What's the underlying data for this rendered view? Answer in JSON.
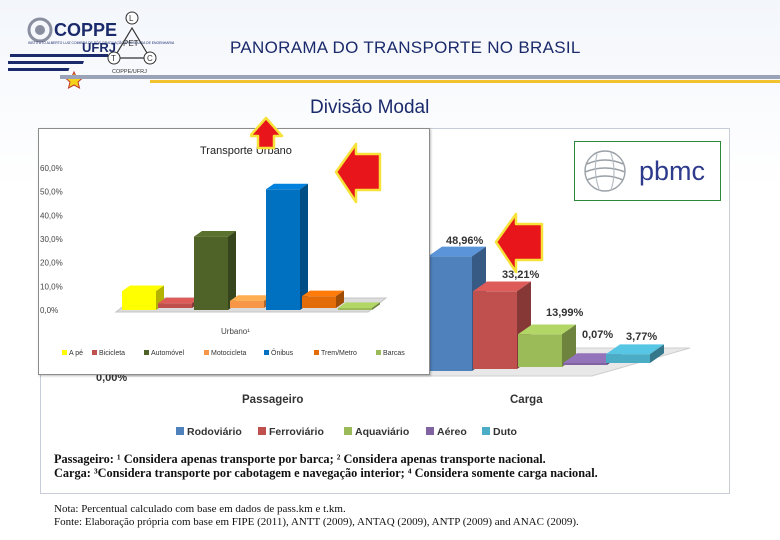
{
  "header": {
    "title": "PANORAMA DO TRANSPORTE NO BRASIL",
    "coppe_logo_text": "COPPE",
    "ufrj_text": "UFRJ",
    "coppe_small_text": "INSTITUTO ALBERTO LUIZ COIMBRA DE PÓS-GRADUAÇÃO E PESQUISA DE ENGENHARIA",
    "pet_logo_letters": {
      "top": "L",
      "center": "PET",
      "left": "T",
      "right": "C"
    },
    "pet_caption": "COPPE/UFRJ"
  },
  "subtitle": "Divisão Modal",
  "pbmc_logo_text": "pbmc",
  "colors": {
    "title": "#1b2a6b",
    "accent_rule": "#f2c230",
    "arrow_red": "#e8161b",
    "arrow_outline": "#f7e23a"
  },
  "chart_data": [
    {
      "type": "bar",
      "categories": [
        "Passageiro",
        "Carga"
      ],
      "series": [
        {
          "name": "Rodoviário",
          "color": "#4f81bd",
          "values": [
            null,
            48.96
          ]
        },
        {
          "name": "Ferroviário",
          "color": "#c0504d",
          "values": [
            null,
            33.21
          ]
        },
        {
          "name": "Aquaviário",
          "color": "#9bbb59",
          "values": [
            null,
            13.99
          ]
        },
        {
          "name": "Aéreo",
          "color": "#8064a2",
          "values": [
            null,
            0.07
          ]
        },
        {
          "name": "Duto",
          "color": "#4bacc6",
          "values": [
            null,
            3.77
          ]
        }
      ],
      "data_labels": [
        "48,96%",
        "33,21%",
        "13,99%",
        "0,07%",
        "3,77%"
      ],
      "visible_tick_labels": [
        "0,00%"
      ],
      "ylim": [
        0,
        60
      ],
      "legend_position": "bottom"
    },
    {
      "type": "bar",
      "title": "Transporte Urbano",
      "categories": [
        "Urbano¹"
      ],
      "series": [
        {
          "name": "A pé",
          "color": "#ffff00",
          "values": [
            8
          ]
        },
        {
          "name": "Bicicleta",
          "color": "#c0504d",
          "values": [
            2
          ]
        },
        {
          "name": "Automóvel",
          "color": "#4f6228",
          "values": [
            31
          ]
        },
        {
          "name": "Motocicleta",
          "color": "#f79646",
          "values": [
            3
          ]
        },
        {
          "name": "Ônibus",
          "color": "#0070c0",
          "values": [
            51
          ]
        },
        {
          "name": "Trem/Metro",
          "color": "#e36c09",
          "values": [
            5
          ]
        },
        {
          "name": "Barcas",
          "color": "#9bbb59",
          "values": [
            0.5
          ]
        }
      ],
      "y_ticks": [
        "60,0%",
        "50,0%",
        "40,0%",
        "30,0%",
        "20,0%",
        "10,0%",
        "0,0%"
      ],
      "ylim": [
        0,
        60
      ],
      "legend_position": "bottom"
    }
  ],
  "footnotes": {
    "line1": "Passageiro: ¹ Considera apenas transporte por barca; ² Considera apenas transporte nacional.",
    "line2": "Carga: ³Considera transporte por cabotagem e navegação interior; ⁴ Considera somente carga nacional."
  },
  "nota": {
    "line1": "Nota: Percentual calculado com base em dados de pass.km e t.km.",
    "line2": "Fonte: Elaboração própria com base em FIPE (2011), ANTT (2009), ANTAQ (2009), ANTP (2009) and ANAC (2009)."
  }
}
